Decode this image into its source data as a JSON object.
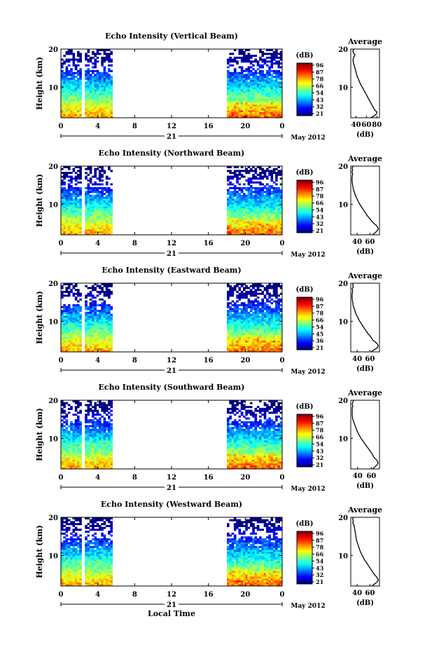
{
  "figure": {
    "xlabel": "Local Time",
    "date_label": "May 2012",
    "day_label": "21",
    "unit_label": "(dB)",
    "average_title": "Average",
    "average_xlabel": "(dB)",
    "height_label": "Height (km)"
  },
  "chart_data": [
    {
      "type": "heatmap",
      "title": "Echo Intensity (Vertical Beam)",
      "xlabel": "Local Time",
      "ylabel": "Height (km)",
      "x_ticks": [
        "0",
        "4",
        "8",
        "12",
        "16",
        "20",
        "0"
      ],
      "y_ticks": [
        "20",
        "10"
      ],
      "xlim": [
        0,
        24
      ],
      "ylim": [
        2,
        20
      ],
      "data_segments_hours": [
        [
          0,
          2.2
        ],
        [
          2.6,
          5.4
        ],
        [
          18,
          24
        ]
      ],
      "colorbar": {
        "label": "(dB)",
        "ticks": [
          "96",
          "87",
          "78",
          "66",
          "54",
          "43",
          "32",
          "21"
        ],
        "range": [
          21,
          96
        ]
      },
      "average_profile": {
        "title": "Average",
        "xlabel": "(dB)",
        "x_ticks": [
          "40",
          "60",
          "80"
        ],
        "xlim": [
          30,
          85
        ],
        "y_ticks": [
          "20",
          "10"
        ],
        "points": [
          [
            36,
            20
          ],
          [
            34,
            19.5
          ],
          [
            35,
            19
          ],
          [
            38,
            18.5
          ],
          [
            36,
            18
          ],
          [
            35,
            17.5
          ],
          [
            34,
            17
          ],
          [
            36,
            16
          ],
          [
            38,
            15
          ],
          [
            40,
            14
          ],
          [
            42,
            13
          ],
          [
            45,
            12
          ],
          [
            48,
            11
          ],
          [
            52,
            10
          ],
          [
            56,
            9
          ],
          [
            60,
            8
          ],
          [
            64,
            7
          ],
          [
            68,
            6
          ],
          [
            72,
            5
          ],
          [
            76,
            4
          ],
          [
            80,
            3.5
          ],
          [
            79,
            3
          ],
          [
            75,
            2.5
          ],
          [
            68,
            2
          ]
        ]
      }
    },
    {
      "type": "heatmap",
      "title": "Echo Intensity (Northward Beam)",
      "xlabel": "Local Time",
      "ylabel": "Height (km)",
      "x_ticks": [
        "0",
        "4",
        "8",
        "12",
        "16",
        "20",
        "0"
      ],
      "y_ticks": [
        "20",
        "10"
      ],
      "xlim": [
        0,
        24
      ],
      "ylim": [
        2,
        20
      ],
      "data_segments_hours": [
        [
          0,
          2.2
        ],
        [
          2.6,
          5.4
        ],
        [
          18,
          24
        ]
      ],
      "colorbar": {
        "label": "(dB)",
        "ticks": [
          "96",
          "87",
          "78",
          "66",
          "54",
          "43",
          "32",
          "21"
        ],
        "range": [
          21,
          96
        ]
      },
      "average_profile": {
        "title": "Average",
        "xlabel": "(dB)",
        "x_ticks": [
          "40",
          "60"
        ],
        "xlim": [
          30,
          75
        ],
        "y_ticks": [
          "20",
          "10"
        ],
        "points": [
          [
            34,
            20
          ],
          [
            32,
            19.5
          ],
          [
            33,
            19
          ],
          [
            32,
            18.5
          ],
          [
            33,
            18
          ],
          [
            32,
            17
          ],
          [
            32,
            16
          ],
          [
            33,
            15
          ],
          [
            34,
            14
          ],
          [
            36,
            13
          ],
          [
            38,
            12
          ],
          [
            41,
            11
          ],
          [
            44,
            10
          ],
          [
            48,
            9
          ],
          [
            52,
            8
          ],
          [
            56,
            7
          ],
          [
            61,
            6
          ],
          [
            66,
            5
          ],
          [
            70,
            4.5
          ],
          [
            72,
            4
          ],
          [
            73,
            3.5
          ],
          [
            71,
            3
          ],
          [
            68,
            2.5
          ],
          [
            64,
            2
          ]
        ]
      }
    },
    {
      "type": "heatmap",
      "title": "Echo Intensity (Eastward Beam)",
      "xlabel": "Local Time",
      "ylabel": "Height (km)",
      "x_ticks": [
        "0",
        "4",
        "8",
        "12",
        "16",
        "20",
        "0"
      ],
      "y_ticks": [
        "20",
        "10"
      ],
      "xlim": [
        0,
        24
      ],
      "ylim": [
        2,
        20
      ],
      "data_segments_hours": [
        [
          0,
          2.2
        ],
        [
          2.6,
          5.4
        ],
        [
          18,
          24
        ]
      ],
      "colorbar": {
        "label": "(dB)",
        "ticks": [
          "96",
          "87",
          "78",
          "66",
          "54",
          "45",
          "36",
          "21"
        ],
        "range": [
          21,
          96
        ]
      },
      "average_profile": {
        "title": "Average",
        "xlabel": "(dB)",
        "x_ticks": [
          "40",
          "60"
        ],
        "xlim": [
          30,
          75
        ],
        "y_ticks": [
          "20",
          "10"
        ],
        "points": [
          [
            34,
            20
          ],
          [
            33,
            19.5
          ],
          [
            34,
            19
          ],
          [
            32,
            18.5
          ],
          [
            33,
            18
          ],
          [
            32,
            17
          ],
          [
            32,
            16
          ],
          [
            33,
            15
          ],
          [
            34,
            14
          ],
          [
            36,
            13
          ],
          [
            38,
            12
          ],
          [
            41,
            11
          ],
          [
            44,
            10
          ],
          [
            48,
            9
          ],
          [
            52,
            8
          ],
          [
            56,
            7
          ],
          [
            61,
            6
          ],
          [
            65,
            5
          ],
          [
            69,
            4.5
          ],
          [
            72,
            4
          ],
          [
            73,
            3.5
          ],
          [
            71,
            3
          ],
          [
            66,
            2.5
          ],
          [
            62,
            2
          ]
        ]
      }
    },
    {
      "type": "heatmap",
      "title": "Echo Intensity (Southward Beam)",
      "xlabel": "Local Time",
      "ylabel": "Height (km)",
      "x_ticks": [
        "0",
        "4",
        "8",
        "12",
        "16",
        "20",
        "0"
      ],
      "y_ticks": [
        "20",
        "10"
      ],
      "xlim": [
        0,
        24
      ],
      "ylim": [
        2,
        20
      ],
      "data_segments_hours": [
        [
          0,
          2.2
        ],
        [
          2.6,
          5.4
        ],
        [
          18,
          24
        ]
      ],
      "colorbar": {
        "label": "(dB)",
        "ticks": [
          "96",
          "87",
          "78",
          "66",
          "54",
          "43",
          "32",
          "21"
        ],
        "range": [
          21,
          96
        ]
      },
      "average_profile": {
        "title": "Average",
        "xlabel": "(dB)",
        "x_ticks": [
          "40",
          "60"
        ],
        "xlim": [
          30,
          72
        ],
        "y_ticks": [
          "20",
          "10"
        ],
        "points": [
          [
            34,
            20
          ],
          [
            33,
            19.5
          ],
          [
            32,
            19
          ],
          [
            33,
            18.5
          ],
          [
            32,
            18
          ],
          [
            32,
            17
          ],
          [
            32,
            16
          ],
          [
            33,
            15
          ],
          [
            35,
            14
          ],
          [
            37,
            13
          ],
          [
            39,
            12
          ],
          [
            42,
            11
          ],
          [
            45,
            10
          ],
          [
            49,
            9
          ],
          [
            53,
            8
          ],
          [
            57,
            7
          ],
          [
            61,
            6
          ],
          [
            64,
            5
          ],
          [
            67,
            4.5
          ],
          [
            69,
            4
          ],
          [
            70,
            3.5
          ],
          [
            68,
            3
          ],
          [
            65,
            2.5
          ],
          [
            62,
            2
          ]
        ]
      }
    },
    {
      "type": "heatmap",
      "title": "Echo Intensity (Westward Beam)",
      "xlabel": "Local Time",
      "ylabel": "Height (km)",
      "x_ticks": [
        "0",
        "4",
        "8",
        "12",
        "16",
        "20",
        "0"
      ],
      "y_ticks": [
        "20",
        "10"
      ],
      "xlim": [
        0,
        24
      ],
      "ylim": [
        2,
        20
      ],
      "data_segments_hours": [
        [
          0,
          2.2
        ],
        [
          2.6,
          5.4
        ],
        [
          18,
          24
        ]
      ],
      "colorbar": {
        "label": "(dB)",
        "ticks": [
          "96",
          "87",
          "78",
          "66",
          "54",
          "43",
          "32",
          "21"
        ],
        "range": [
          21,
          96
        ]
      },
      "average_profile": {
        "title": "Average",
        "xlabel": "(dB)",
        "x_ticks": [
          "40",
          "60"
        ],
        "xlim": [
          30,
          75
        ],
        "y_ticks": [
          "20",
          "10"
        ],
        "points": [
          [
            34,
            20
          ],
          [
            33,
            19.5
          ],
          [
            34,
            19
          ],
          [
            33,
            18.5
          ],
          [
            35,
            18
          ],
          [
            36,
            17
          ],
          [
            37,
            16
          ],
          [
            38,
            15
          ],
          [
            39,
            14
          ],
          [
            41,
            13
          ],
          [
            43,
            12
          ],
          [
            45,
            11
          ],
          [
            48,
            10
          ],
          [
            51,
            9
          ],
          [
            55,
            8
          ],
          [
            59,
            7
          ],
          [
            63,
            6
          ],
          [
            67,
            5
          ],
          [
            70,
            4.5
          ],
          [
            72,
            4
          ],
          [
            73,
            3.5
          ],
          [
            71,
            3
          ],
          [
            67,
            2.5
          ],
          [
            63,
            2
          ]
        ]
      }
    }
  ]
}
